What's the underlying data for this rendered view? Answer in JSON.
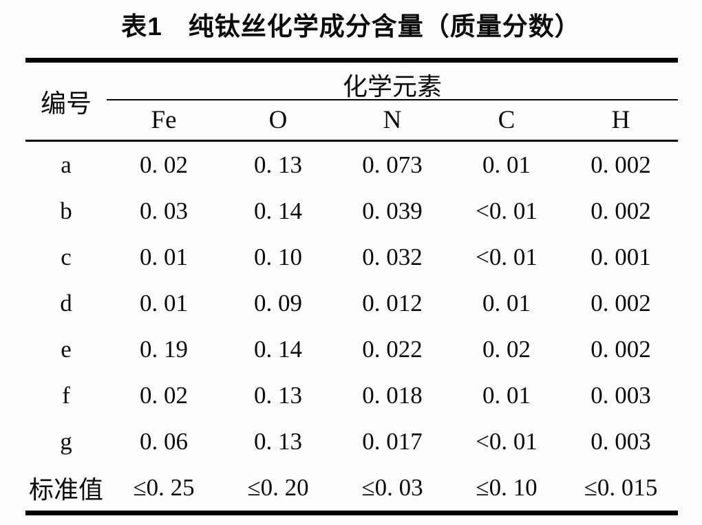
{
  "title": "表1　纯钛丝化学成分含量（质量分数）",
  "table": {
    "id_header": "编号",
    "group_header": "化学元素",
    "columns": [
      "Fe",
      "O",
      "N",
      "C",
      "H"
    ],
    "rows": [
      {
        "id": "a",
        "values": [
          "0. 02",
          "0. 13",
          "0. 073",
          "0. 01",
          "0. 002"
        ]
      },
      {
        "id": "b",
        "values": [
          "0. 03",
          "0. 14",
          "0. 039",
          "<0. 01",
          "0. 002"
        ]
      },
      {
        "id": "c",
        "values": [
          "0. 01",
          "0. 10",
          "0. 032",
          "<0. 01",
          "0. 001"
        ]
      },
      {
        "id": "d",
        "values": [
          "0. 01",
          "0. 09",
          "0. 012",
          "0. 01",
          "0. 002"
        ]
      },
      {
        "id": "e",
        "values": [
          "0. 19",
          "0. 14",
          "0. 022",
          "0. 02",
          "0. 002"
        ]
      },
      {
        "id": "f",
        "values": [
          "0. 02",
          "0. 13",
          "0. 018",
          "0. 01",
          "0. 003"
        ]
      },
      {
        "id": "g",
        "values": [
          "0. 06",
          "0. 13",
          "0. 017",
          "<0. 01",
          "0. 003"
        ]
      },
      {
        "id": "标准值",
        "values": [
          "≤0. 25",
          "≤0. 20",
          "≤0. 03",
          "≤0. 10",
          "≤0. 015"
        ]
      }
    ]
  },
  "colors": {
    "text": "#0a0a0a",
    "rule": "#000000",
    "background": "#fdfdfd"
  }
}
